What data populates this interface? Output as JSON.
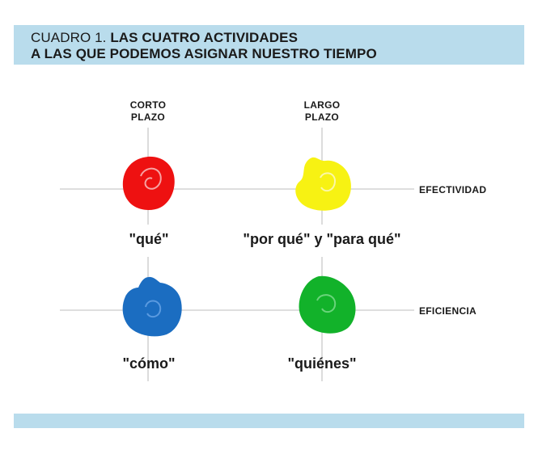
{
  "title": {
    "prefix": "CUADRO 1.",
    "line1": "LAS CUATRO ACTIVIDADES",
    "line2": "A LAS QUE PODEMOS ASIGNAR NUESTRO TIEMPO"
  },
  "columns": {
    "short": {
      "line1": "CORTO",
      "line2": "PLAZO"
    },
    "long": {
      "line1": "LARGO",
      "line2": "PLAZO"
    }
  },
  "rows": {
    "effectiveness": "EFECTIVIDAD",
    "efficiency": "EFICIENCIA"
  },
  "quadrants": {
    "what": {
      "label": "\"qué\"",
      "color": "#ee1111"
    },
    "why": {
      "label": "\"por qué\" y \"para qué\"",
      "color": "#f7f213"
    },
    "how": {
      "label": "\"cómo\"",
      "color": "#1b6dc1"
    },
    "who": {
      "label": "\"quiénes\"",
      "color": "#12b22a"
    }
  },
  "colors": {
    "band": "#b9dcec",
    "grid_line": "#d4d4d4",
    "text": "#1a1a1a"
  }
}
